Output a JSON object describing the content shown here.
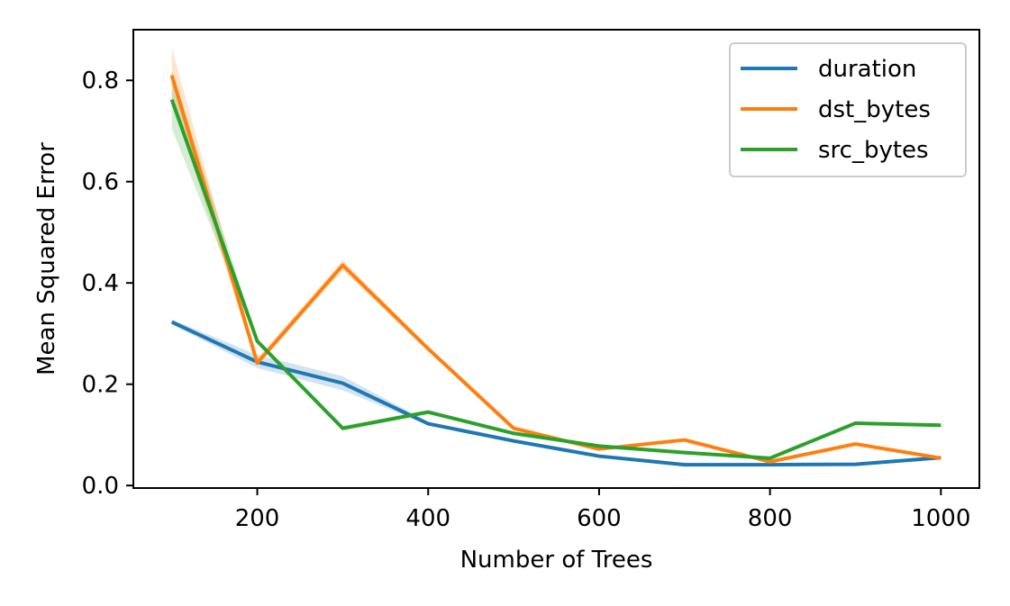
{
  "chart_data": {
    "type": "line",
    "title": "",
    "xlabel": "Number of Trees",
    "ylabel": "Mean Squared Error",
    "xlim": [
      55,
      1045
    ],
    "ylim": [
      -0.005,
      0.9
    ],
    "xticks": [
      200,
      400,
      600,
      800,
      1000
    ],
    "yticks": [
      0.0,
      0.2,
      0.4,
      0.6,
      0.8
    ],
    "x": [
      100,
      200,
      300,
      400,
      500,
      600,
      700,
      800,
      900,
      1000
    ],
    "legend": "top-right",
    "grid": false,
    "series": [
      {
        "name": "duration",
        "color": "#1f77b4",
        "values": [
          0.323,
          0.244,
          0.202,
          0.122,
          0.088,
          0.058,
          0.041,
          0.041,
          0.042,
          0.055
        ],
        "band_lower": [
          0.318,
          0.232,
          0.188,
          0.119,
          0.085,
          0.056,
          0.04,
          0.04,
          0.041,
          0.053
        ],
        "band_upper": [
          0.328,
          0.258,
          0.216,
          0.126,
          0.092,
          0.061,
          0.043,
          0.042,
          0.044,
          0.057
        ]
      },
      {
        "name": "dst_bytes",
        "color": "#ff7f0e",
        "values": [
          0.81,
          0.242,
          0.435,
          0.27,
          0.113,
          0.072,
          0.09,
          0.047,
          0.082,
          0.054
        ],
        "band_lower": [
          0.76,
          0.236,
          0.425,
          0.265,
          0.11,
          0.069,
          0.087,
          0.045,
          0.079,
          0.052
        ],
        "band_upper": [
          0.865,
          0.252,
          0.445,
          0.275,
          0.116,
          0.075,
          0.093,
          0.049,
          0.085,
          0.056
        ]
      },
      {
        "name": "src_bytes",
        "color": "#2ca02c",
        "values": [
          0.762,
          0.285,
          0.113,
          0.145,
          0.103,
          0.078,
          0.065,
          0.054,
          0.123,
          0.119
        ],
        "band_lower": [
          0.705,
          0.28,
          0.108,
          0.141,
          0.1,
          0.076,
          0.063,
          0.052,
          0.12,
          0.117
        ],
        "band_upper": [
          0.82,
          0.29,
          0.118,
          0.149,
          0.106,
          0.08,
          0.067,
          0.056,
          0.126,
          0.121
        ]
      }
    ]
  }
}
